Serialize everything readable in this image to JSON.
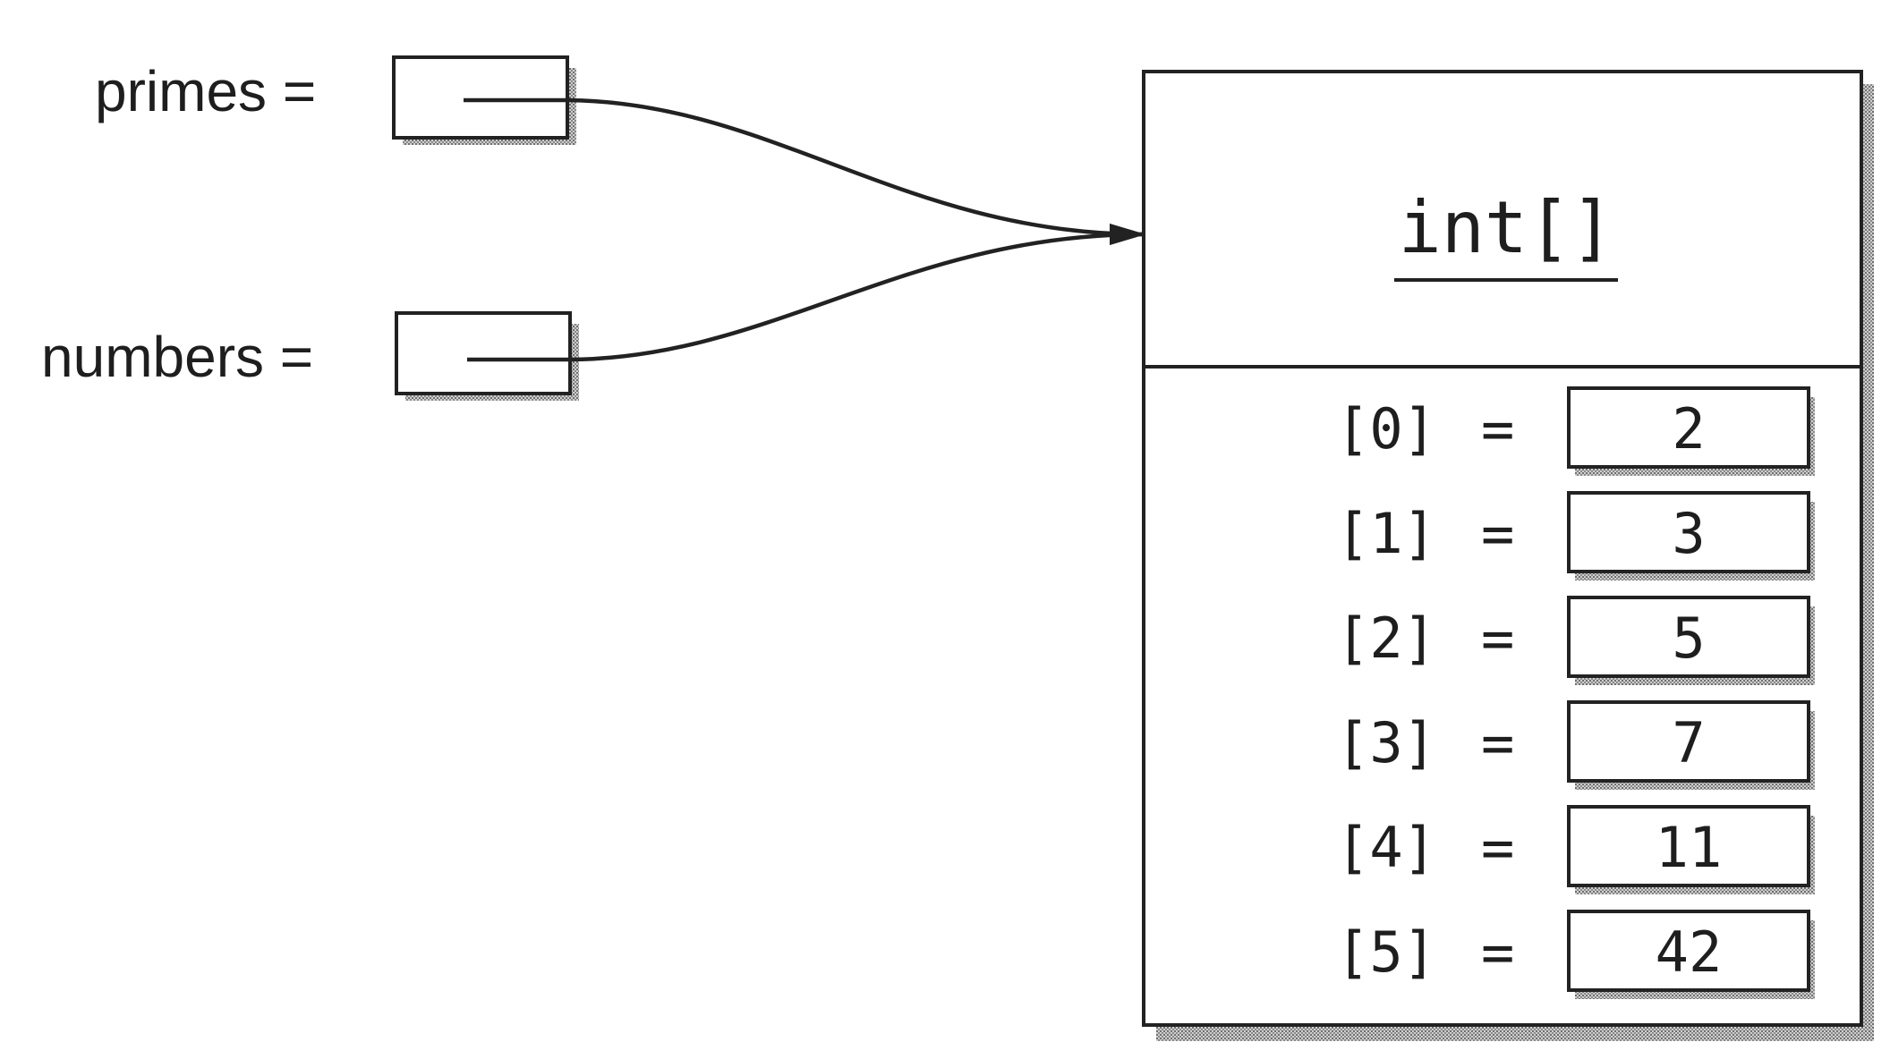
{
  "variables": [
    {
      "name": "primes",
      "label": "primes ="
    },
    {
      "name": "numbers",
      "label": "numbers ="
    }
  ],
  "object": {
    "type": "int[]",
    "elements": [
      {
        "index": "[0]",
        "eq": "=",
        "value": "2"
      },
      {
        "index": "[1]",
        "eq": "=",
        "value": "3"
      },
      {
        "index": "[2]",
        "eq": "=",
        "value": "5"
      },
      {
        "index": "[3]",
        "eq": "=",
        "value": "7"
      },
      {
        "index": "[4]",
        "eq": "=",
        "value": "11"
      },
      {
        "index": "[5]",
        "eq": "=",
        "value": "42"
      }
    ]
  },
  "colors": {
    "ink": "#222222",
    "shadow": "#8a8a8a",
    "background": "#ffffff"
  }
}
